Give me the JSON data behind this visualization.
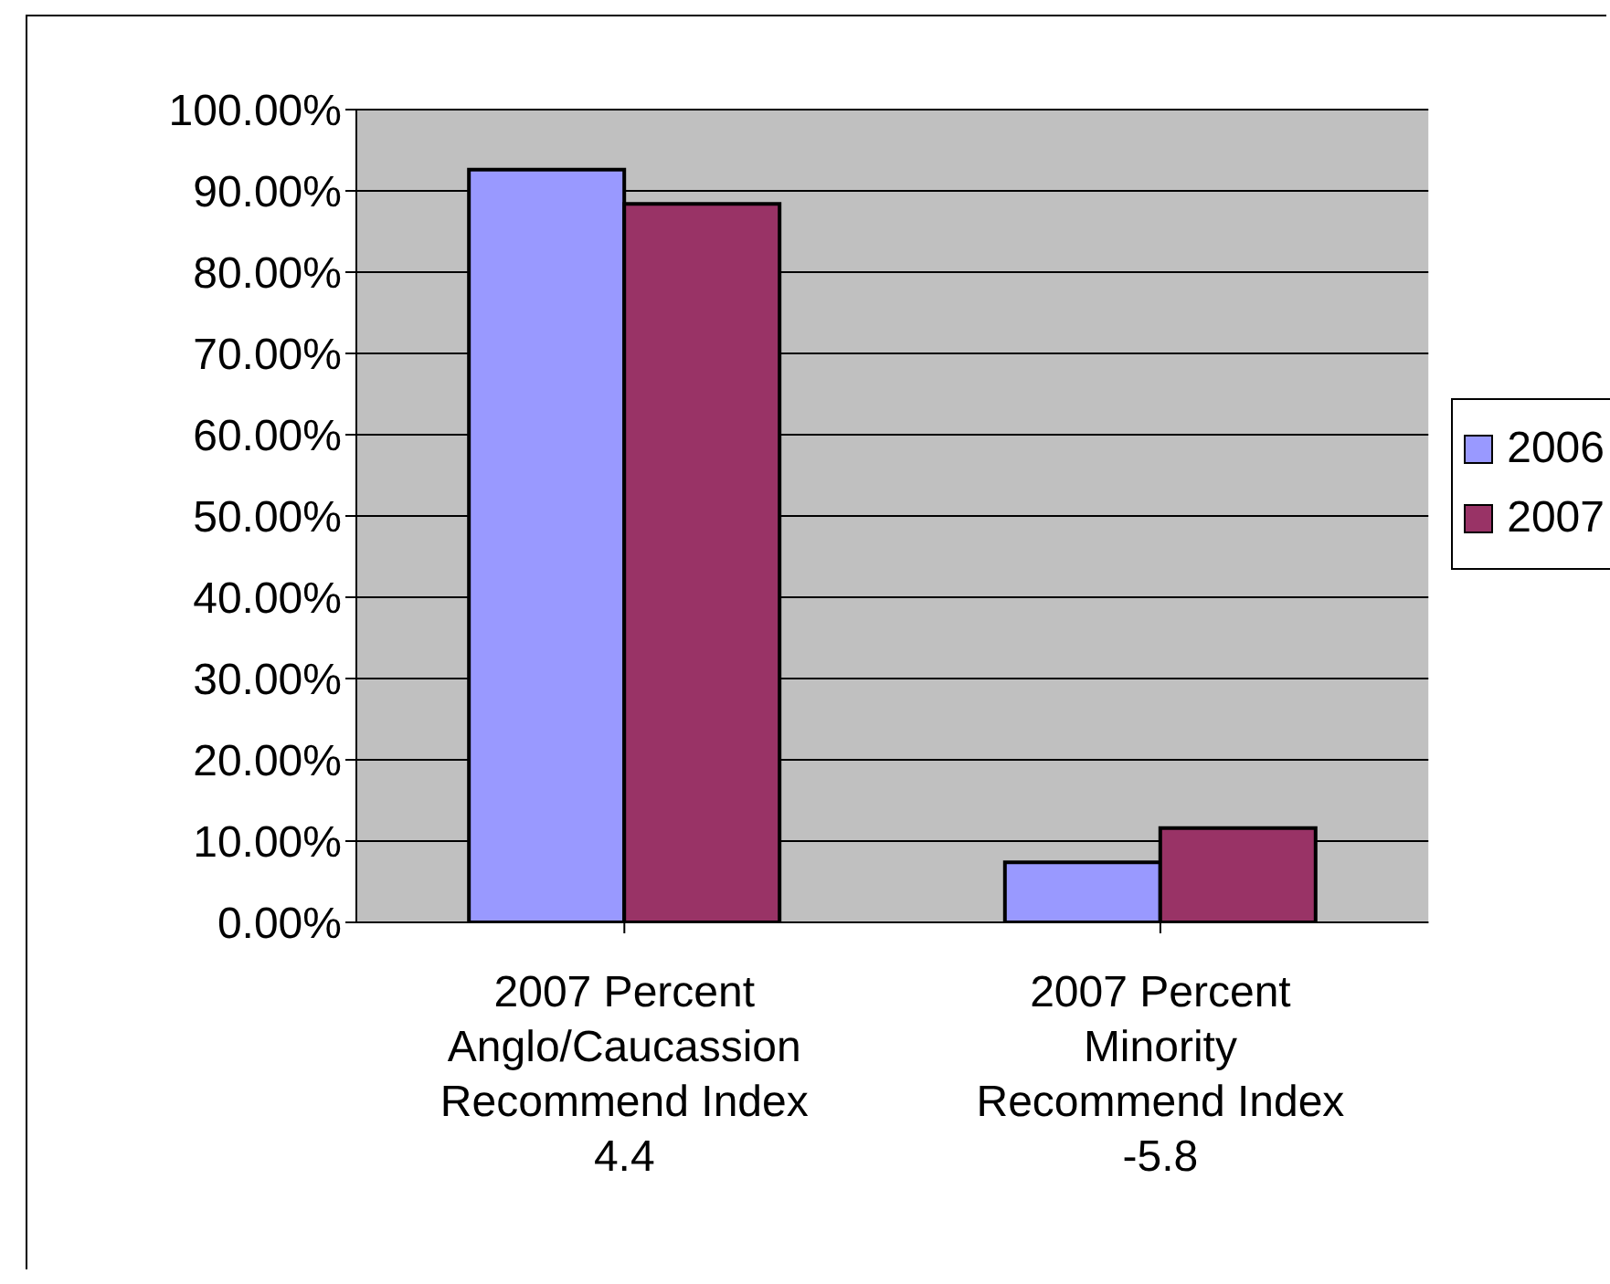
{
  "chart_data": {
    "type": "bar",
    "categories": [
      "2007 Percent\nAnglo/Caucassion\nRecommend Index\n4.4",
      "2007 Percent\nMinority\nRecommend Index\n-5.8"
    ],
    "series": [
      {
        "name": "2006",
        "color": "#9999ff",
        "values": [
          92.6,
          7.4
        ]
      },
      {
        "name": "2007",
        "color": "#993366",
        "values": [
          88.4,
          11.6
        ]
      }
    ],
    "ylim": [
      0,
      100
    ],
    "yticks": [
      {
        "value": 0,
        "label": "0.00%"
      },
      {
        "value": 10,
        "label": "10.00%"
      },
      {
        "value": 20,
        "label": "20.00%"
      },
      {
        "value": 30,
        "label": "30.00%"
      },
      {
        "value": 40,
        "label": "40.00%"
      },
      {
        "value": 50,
        "label": "50.00%"
      },
      {
        "value": 60,
        "label": "60.00%"
      },
      {
        "value": 70,
        "label": "70.00%"
      },
      {
        "value": 80,
        "label": "80.00%"
      },
      {
        "value": 90,
        "label": "90.00%"
      },
      {
        "value": 100,
        "label": "100.00%"
      }
    ],
    "grid": "y",
    "legend": "right"
  }
}
